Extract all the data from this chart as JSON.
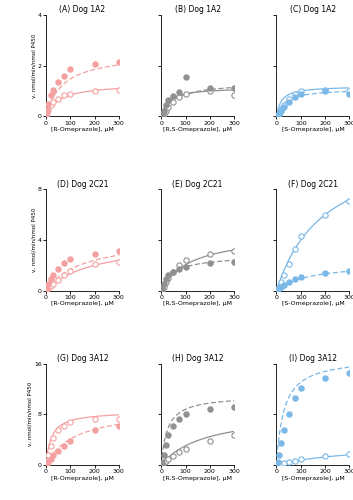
{
  "panels": [
    {
      "title": "(A) Dog 1A2",
      "xlabel": "[R-Omeprazole], μM",
      "ylabel": "v, nmol/min/nmol P450",
      "ylim": [
        0,
        4
      ],
      "yticks": [
        0,
        2,
        4
      ],
      "color": "#f4a0a0",
      "open_data": [
        2,
        5,
        10,
        20,
        30,
        50,
        75,
        100,
        200,
        300
      ],
      "open_vals": [
        0.05,
        0.15,
        0.25,
        0.45,
        0.55,
        0.7,
        0.85,
        0.9,
        1.0,
        1.05
      ],
      "closed_data": [
        2,
        5,
        10,
        20,
        30,
        50,
        75,
        100,
        200,
        300
      ],
      "closed_vals": [
        0.05,
        0.25,
        0.5,
        0.85,
        1.05,
        1.35,
        1.6,
        1.85,
        2.05,
        2.15
      ],
      "open_km": 55,
      "open_vmax": 1.3,
      "closed_km": 70,
      "closed_vmax": 2.5
    },
    {
      "title": "(B) Dog 1A2",
      "xlabel": "[R,S-Omeprazole], μM",
      "ylabel": "v, nmol/min/nmol P450",
      "ylim": [
        0,
        4
      ],
      "yticks": [
        0,
        2,
        4
      ],
      "color": "#909090",
      "open_data": [
        2,
        5,
        10,
        20,
        30,
        50,
        75,
        100,
        200,
        300
      ],
      "open_vals": [
        0.02,
        0.05,
        0.1,
        0.2,
        0.35,
        0.55,
        0.75,
        0.9,
        1.0,
        0.85
      ],
      "closed_data": [
        2,
        5,
        10,
        20,
        30,
        50,
        75,
        100,
        200,
        300
      ],
      "closed_vals": [
        0.02,
        0.1,
        0.2,
        0.45,
        0.65,
        0.8,
        0.95,
        1.55,
        1.1,
        1.1
      ],
      "open_km": 30,
      "open_vmax": 1.15,
      "closed_km": 55,
      "closed_vmax": 1.35
    },
    {
      "title": "(C) Dog 1A2",
      "xlabel": "[S-Omeprazole], μM",
      "ylabel": "v, nmol/min/nmol P450",
      "ylim": [
        0,
        4
      ],
      "yticks": [
        0,
        2,
        4
      ],
      "color": "#7ab8e8",
      "open_data": [
        2,
        5,
        10,
        20,
        30,
        50,
        75,
        100,
        200,
        300
      ],
      "open_vals": [
        0.02,
        0.05,
        0.1,
        0.25,
        0.45,
        0.7,
        0.9,
        1.0,
        1.05,
        1.0
      ],
      "closed_data": [
        2,
        5,
        10,
        20,
        30,
        50,
        75,
        100,
        200,
        300
      ],
      "closed_vals": [
        0.02,
        0.05,
        0.1,
        0.2,
        0.35,
        0.55,
        0.75,
        0.9,
        1.0,
        0.9
      ],
      "open_km": 20,
      "open_vmax": 1.2,
      "closed_km": 35,
      "closed_vmax": 1.1
    },
    {
      "title": "(D) Dog 2C21",
      "xlabel": "[R-Omeprazole], μM",
      "ylabel": "v, nmol/min/nmol P450",
      "ylim": [
        0,
        8
      ],
      "yticks": [
        0,
        4,
        8
      ],
      "color": "#f4a0a0",
      "open_data": [
        2,
        5,
        10,
        20,
        30,
        50,
        75,
        100,
        200,
        300
      ],
      "open_vals": [
        0.05,
        0.1,
        0.2,
        0.4,
        0.55,
        0.85,
        1.2,
        1.55,
        2.1,
        2.3
      ],
      "closed_data": [
        2,
        5,
        10,
        20,
        30,
        50,
        75,
        100,
        200,
        300
      ],
      "closed_vals": [
        0.05,
        0.2,
        0.5,
        0.9,
        1.2,
        1.7,
        2.2,
        2.5,
        2.9,
        3.1
      ],
      "open_km": 200,
      "open_vmax": 4.0,
      "closed_km": 150,
      "closed_vmax": 4.2
    },
    {
      "title": "(E) Dog 2C21",
      "xlabel": "[R,S-Omeprazole], μM",
      "ylabel": "v, nmol/min/nmol P450",
      "ylim": [
        0,
        8
      ],
      "yticks": [
        0,
        4,
        8
      ],
      "color": "#909090",
      "open_data": [
        2,
        5,
        10,
        20,
        30,
        50,
        75,
        100,
        200,
        300
      ],
      "open_vals": [
        0.05,
        0.1,
        0.3,
        0.65,
        1.0,
        1.5,
        2.0,
        2.4,
        2.9,
        3.1
      ],
      "closed_data": [
        2,
        5,
        10,
        20,
        30,
        50,
        75,
        100,
        200,
        300
      ],
      "closed_vals": [
        0.05,
        0.2,
        0.5,
        0.9,
        1.2,
        1.5,
        1.75,
        1.9,
        2.15,
        2.25
      ],
      "open_km": 120,
      "open_vmax": 4.5,
      "closed_km": 50,
      "closed_vmax": 2.8
    },
    {
      "title": "(F) Dog 2C21",
      "xlabel": "[S-Omeprazole], μM",
      "ylabel": "v, nmol/min/nmol P450",
      "ylim": [
        0,
        8
      ],
      "yticks": [
        0,
        4,
        8
      ],
      "color": "#7ab8e8",
      "open_data": [
        2,
        5,
        10,
        20,
        30,
        50,
        75,
        100,
        200,
        300
      ],
      "open_vals": [
        0.05,
        0.1,
        0.3,
        0.7,
        1.2,
        2.1,
        3.3,
        4.3,
        6.0,
        7.1
      ],
      "closed_data": [
        2,
        5,
        10,
        20,
        30,
        50,
        75,
        100,
        200,
        300
      ],
      "closed_vals": [
        0.05,
        0.1,
        0.2,
        0.3,
        0.45,
        0.65,
        0.9,
        1.1,
        1.4,
        1.55
      ],
      "open_km": 200,
      "open_vmax": 12.0,
      "closed_km": 130,
      "closed_vmax": 2.2
    },
    {
      "title": "(G) Dog 3A12",
      "xlabel": "[R-Omeprazole], μM",
      "ylabel": "v, nmol/min/nmol P450",
      "ylim": [
        0,
        16
      ],
      "yticks": [
        0,
        8,
        16
      ],
      "color": "#f4a0a0",
      "open_data": [
        2,
        5,
        10,
        20,
        30,
        50,
        75,
        100,
        200,
        300
      ],
      "open_vals": [
        0.1,
        0.6,
        1.5,
        3.0,
        4.2,
        5.5,
        6.2,
        6.8,
        7.2,
        7.3
      ],
      "closed_data": [
        2,
        5,
        10,
        20,
        30,
        50,
        75,
        100,
        200,
        300
      ],
      "closed_vals": [
        0.05,
        0.2,
        0.5,
        1.0,
        1.5,
        2.2,
        3.0,
        3.8,
        5.5,
        6.2
      ],
      "open_km": 22,
      "open_vmax": 8.5,
      "closed_km": 120,
      "closed_vmax": 9.0
    },
    {
      "title": "(H) Dog 3A12",
      "xlabel": "[R,S-Omeprazole], μM",
      "ylabel": "v, nmol/min/nmol P450",
      "ylim": [
        0,
        16
      ],
      "yticks": [
        0,
        8,
        16
      ],
      "color": "#909090",
      "open_data": [
        2,
        5,
        10,
        20,
        30,
        50,
        75,
        100,
        200,
        300
      ],
      "open_vals": [
        0.05,
        0.15,
        0.3,
        0.6,
        0.9,
        1.4,
        2.0,
        2.5,
        3.8,
        4.8
      ],
      "closed_data": [
        2,
        5,
        10,
        20,
        30,
        50,
        75,
        100,
        200,
        300
      ],
      "closed_vals": [
        0.1,
        0.5,
        1.5,
        3.2,
        4.8,
        6.2,
        7.2,
        8.0,
        8.8,
        9.1
      ],
      "open_km": 180,
      "open_vmax": 8.5,
      "closed_km": 25,
      "closed_vmax": 11.0
    },
    {
      "title": "(I) Dog 3A12",
      "xlabel": "[S-Omeprazole], μM",
      "ylabel": "v, nmol/min/nmol P450",
      "ylim": [
        0,
        16
      ],
      "yticks": [
        0,
        8,
        16
      ],
      "color": "#7ab8e8",
      "open_data": [
        2,
        5,
        10,
        20,
        30,
        50,
        75,
        100,
        200,
        300
      ],
      "open_vals": [
        0.02,
        0.05,
        0.1,
        0.2,
        0.3,
        0.5,
        0.7,
        0.9,
        1.4,
        1.8
      ],
      "closed_data": [
        2,
        5,
        10,
        20,
        30,
        50,
        75,
        100,
        200,
        300
      ],
      "closed_vals": [
        0.1,
        0.5,
        1.5,
        3.5,
        5.5,
        8.0,
        10.5,
        12.2,
        13.8,
        14.5
      ],
      "open_km": 350,
      "open_vmax": 3.5,
      "closed_km": 30,
      "closed_vmax": 17.0
    }
  ],
  "fig_width": 3.53,
  "fig_height": 5.0,
  "dpi": 100
}
